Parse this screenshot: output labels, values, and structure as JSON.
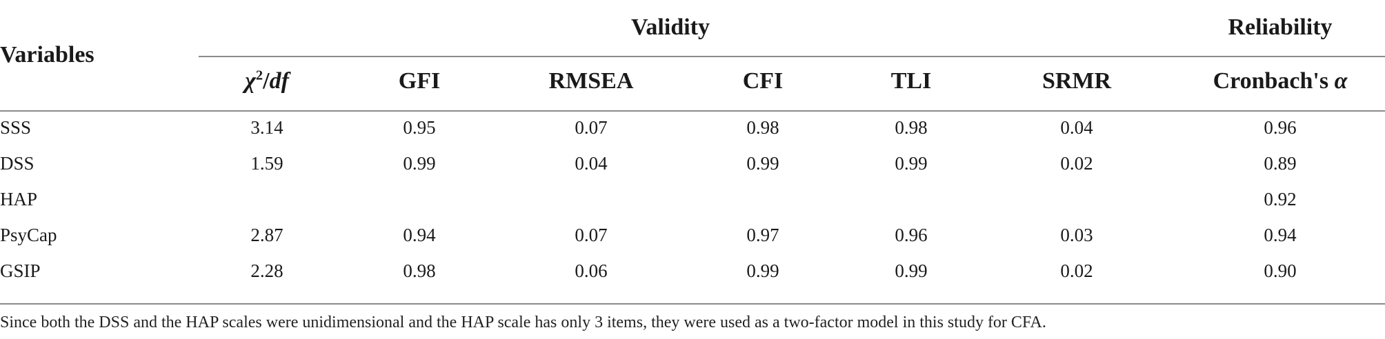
{
  "table": {
    "header": {
      "variables_label": "Variables",
      "validity_label": "Validity",
      "reliability_label": "Reliability",
      "chi_symbol": "χ",
      "chi_exponent": "2",
      "chi_slash": "/",
      "chi_df": "df",
      "columns": [
        "GFI",
        "RMSEA",
        "CFI",
        "TLI",
        "SRMR"
      ],
      "alpha_prefix": "Cronbach's ",
      "alpha_symbol": "α"
    },
    "rows": [
      {
        "variable": "SSS",
        "values": [
          "3.14",
          "0.95",
          "0.07",
          "0.98",
          "0.98",
          "0.04",
          "0.96"
        ]
      },
      {
        "variable": "DSS",
        "values": [
          "1.59",
          "0.99",
          "0.04",
          "0.99",
          "0.99",
          "0.02",
          "0.89"
        ]
      },
      {
        "variable": "HAP",
        "values": [
          "",
          "",
          "",
          "",
          "",
          "",
          "0.92"
        ]
      },
      {
        "variable": "PsyCap",
        "values": [
          "2.87",
          "0.94",
          "0.07",
          "0.97",
          "0.96",
          "0.03",
          "0.94"
        ]
      },
      {
        "variable": "GSIP",
        "values": [
          "2.28",
          "0.98",
          "0.06",
          "0.99",
          "0.99",
          "0.02",
          "0.90"
        ]
      }
    ],
    "footnote": "Since both the DSS and the HAP scales were unidimensional and the HAP scale has only 3 items, they were used as a two-factor model in this study for CFA."
  }
}
